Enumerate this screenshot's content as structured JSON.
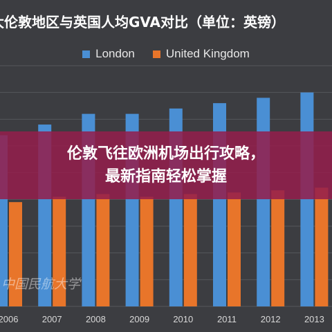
{
  "chart_data": {
    "type": "bar",
    "title": "大伦敦地区与英国人均GVA对比（单位：英镑）",
    "categories": [
      "2006",
      "2007",
      "2008",
      "2009",
      "2010",
      "2011",
      "2012",
      "2013"
    ],
    "series": [
      {
        "name": "London",
        "color": "#4a8fd4",
        "values": [
          32000,
          34000,
          36000,
          36000,
          37000,
          38000,
          39000,
          40000
        ]
      },
      {
        "name": "United Kingdom",
        "color": "#e8752a",
        "values": [
          19500,
          20500,
          21000,
          20500,
          21000,
          21300,
          21700,
          22200
        ]
      }
    ],
    "ylim": [
      0,
      45000
    ],
    "grid": true,
    "legend_position": "top"
  },
  "overlay": {
    "line1": "伦敦飞往欧洲机场出行攻略，",
    "line2": "最新指南轻松掌握"
  },
  "watermark": "中国民航大学",
  "colors": {
    "background": "#3c3d41",
    "overlay": "#941e4c"
  }
}
